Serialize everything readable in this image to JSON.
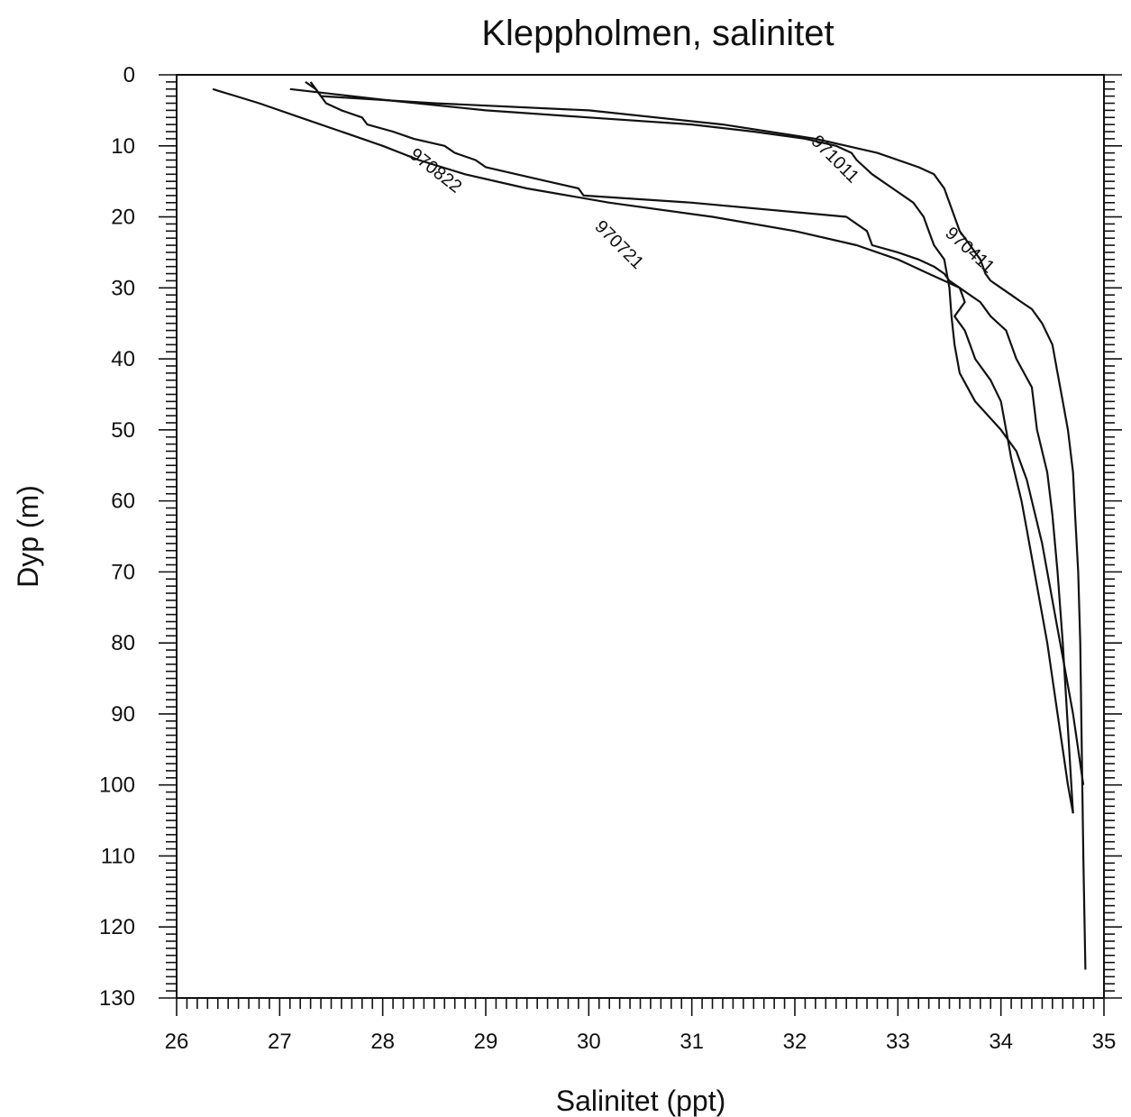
{
  "chart_data": {
    "type": "line",
    "title": "Kleppholmen, salinitet",
    "xlabel": "Salinitet (ppt)",
    "ylabel": "Dyp (m)",
    "xlim": [
      26,
      35
    ],
    "ylim": [
      130,
      0
    ],
    "x_ticks": [
      26,
      27,
      28,
      29,
      30,
      31,
      32,
      33,
      34,
      35
    ],
    "x_tick_labels": [
      "26",
      "27",
      "28",
      "29",
      "30",
      "31",
      "32",
      "33",
      "34",
      "35"
    ],
    "y_ticks": [
      0,
      10,
      20,
      30,
      40,
      50,
      60,
      70,
      80,
      90,
      100,
      110,
      120,
      130
    ],
    "y_tick_labels": [
      "0",
      "10",
      "20",
      "30",
      "40",
      "50",
      "60",
      "70",
      "80",
      "90",
      "100",
      "110",
      "120",
      "130"
    ],
    "grid": false,
    "legend": "none",
    "series": [
      {
        "name": "970822",
        "salinity": [
          27.3,
          27.35,
          27.4,
          27.45,
          27.6,
          27.8,
          27.85,
          28.1,
          28.3,
          28.6,
          28.7,
          28.9,
          29.0,
          29.3,
          29.6,
          29.9,
          29.95,
          31.0,
          32.5,
          32.7,
          32.75,
          33.0,
          33.2,
          33.35,
          33.45,
          33.5,
          33.6,
          33.65,
          33.55,
          33.65,
          33.7,
          33.75,
          33.9,
          34.0,
          34.05,
          34.1,
          34.15,
          34.2,
          34.25,
          34.3,
          34.35,
          34.4,
          34.45,
          34.5,
          34.55,
          34.6,
          34.65,
          34.7
        ],
        "depth": [
          1,
          2,
          3,
          4,
          5,
          6,
          7,
          8,
          9,
          10,
          11,
          12,
          13,
          14,
          15,
          16,
          17,
          18,
          20,
          22,
          24,
          25,
          26,
          27,
          28,
          29,
          30,
          32,
          34,
          36,
          38,
          40,
          43,
          46,
          50,
          54,
          57,
          60,
          64,
          68,
          72,
          76,
          80,
          85,
          90,
          95,
          100,
          104
        ]
      },
      {
        "name": "970721",
        "salinity": [
          26.35,
          26.8,
          27.2,
          27.6,
          28.0,
          28.35,
          28.8,
          29.4,
          30.2,
          31.2,
          32.0,
          32.6,
          33.0,
          33.3,
          33.6,
          33.8,
          33.9,
          34.05,
          34.15,
          34.3,
          34.35,
          34.45,
          34.5,
          34.55,
          34.6,
          34.65,
          34.7
        ],
        "depth": [
          2,
          4,
          6,
          8,
          10,
          12,
          14,
          16,
          18,
          20,
          22,
          24,
          26,
          28,
          30,
          32,
          34,
          36,
          40,
          44,
          50,
          56,
          62,
          70,
          80,
          92,
          104
        ]
      },
      {
        "name": "971011",
        "salinity": [
          27.1,
          28.0,
          29.0,
          30.0,
          31.0,
          31.6,
          32.1,
          32.4,
          32.55,
          32.6,
          32.75,
          32.95,
          33.15,
          33.25,
          33.3,
          33.35,
          33.45,
          33.5,
          33.52,
          33.55,
          33.6,
          33.75,
          34.0,
          34.1,
          34.15,
          34.2,
          34.25,
          34.3,
          34.35,
          34.4,
          34.45,
          34.5,
          34.55,
          34.6,
          34.65,
          34.7,
          34.75,
          34.8
        ],
        "depth": [
          2,
          3.5,
          5,
          6,
          7,
          8,
          9,
          10,
          11,
          12,
          14,
          16,
          18,
          20,
          22,
          24,
          26,
          30,
          34,
          38,
          42,
          46,
          50,
          52,
          53,
          55,
          57,
          60,
          63,
          66,
          70,
          74,
          78,
          82,
          86,
          90,
          95,
          100
        ]
      },
      {
        "name": "970411",
        "salinity": [
          27.25,
          27.35,
          27.4,
          28.5,
          30.0,
          31.3,
          32.2,
          32.8,
          33.2,
          33.35,
          33.45,
          33.5,
          33.55,
          33.6,
          33.7,
          33.8,
          33.85,
          33.9,
          34.0,
          34.1,
          34.2,
          34.3,
          34.4,
          34.5,
          34.55,
          34.6,
          34.65,
          34.7,
          34.72,
          34.75,
          34.77,
          34.78,
          34.8,
          34.82
        ],
        "depth": [
          1,
          2,
          3,
          4,
          5,
          7,
          9,
          11,
          13,
          14,
          16,
          18,
          20,
          22,
          24,
          26,
          28,
          29,
          30,
          31,
          32,
          33,
          35,
          38,
          42,
          46,
          50,
          56,
          62,
          70,
          80,
          90,
          110,
          126
        ]
      }
    ]
  }
}
